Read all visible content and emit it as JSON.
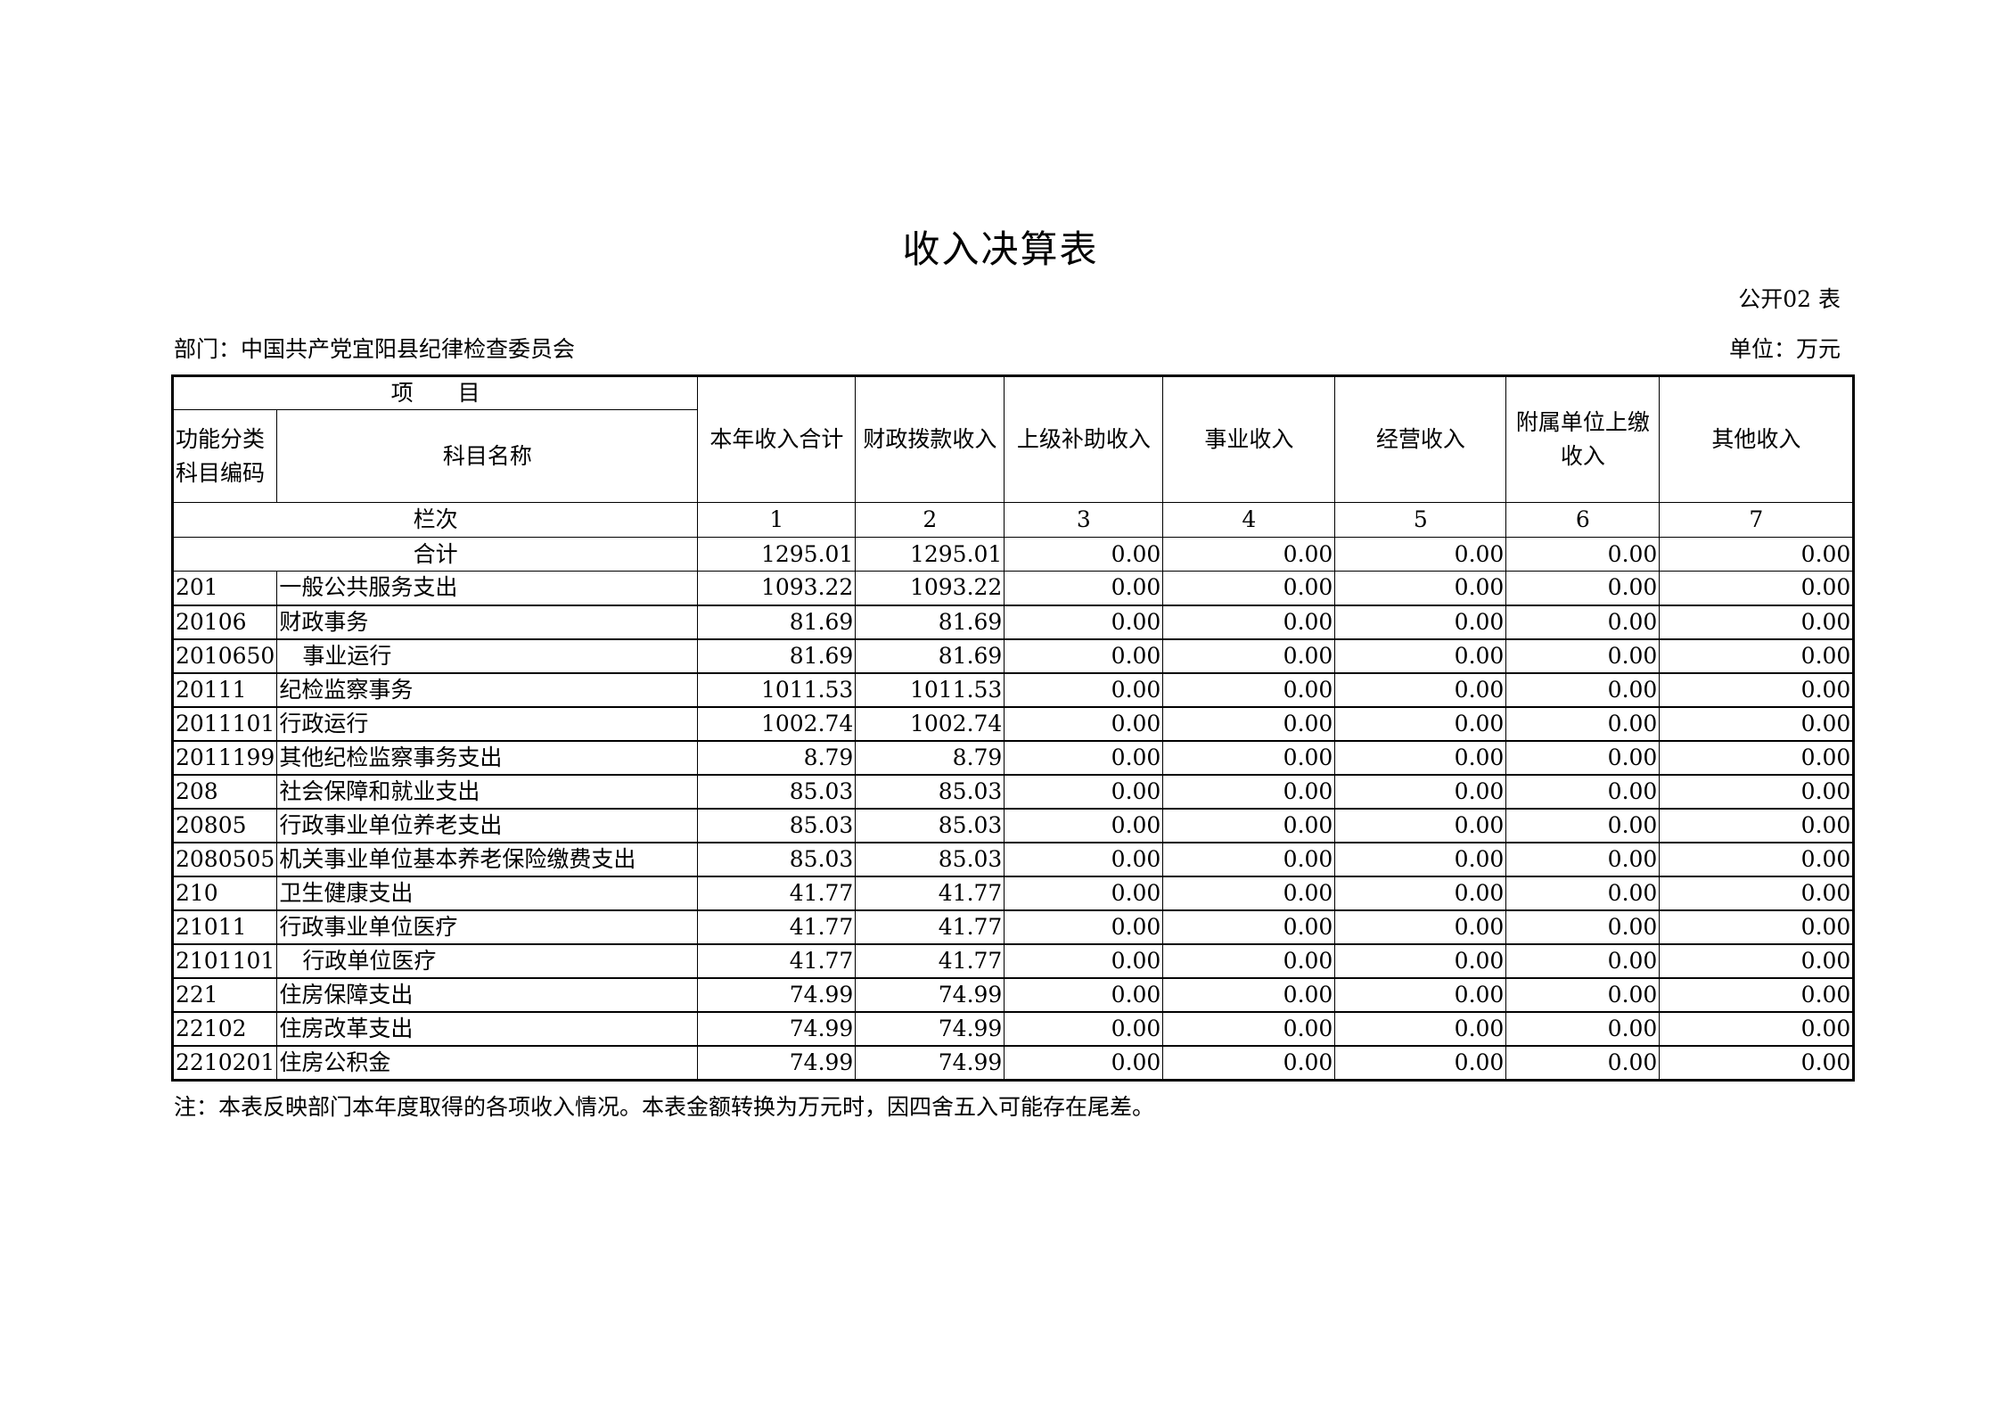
{
  "title": "收入决算表",
  "form_no": "公开02 表",
  "department": "部门：中国共产党宜阳县纪律检查委员会",
  "unit": "单位：万元",
  "headers": {
    "item": "项　　目",
    "code": "功能分类\n科目编码",
    "code_line1": "功能分类",
    "code_line2": "科目编码",
    "name": "科目名称",
    "columns": [
      "本年收入合计",
      "财政拨款收入",
      "上级补助收入",
      "事业收入",
      "经营收入",
      "附属单位上缴收入",
      "其他收入"
    ],
    "col6_line1": "附属单位上缴",
    "col6_line2": "收入",
    "seq_label": "栏次",
    "seq": [
      "1",
      "2",
      "3",
      "4",
      "5",
      "6",
      "7"
    ]
  },
  "total": {
    "label": "合计",
    "values": [
      "1295.01",
      "1295.01",
      "0.00",
      "0.00",
      "0.00",
      "0.00",
      "0.00"
    ]
  },
  "rows": [
    {
      "code": "201",
      "name": "一般公共服务支出",
      "indent": false,
      "values": [
        "1093.22",
        "1093.22",
        "0.00",
        "0.00",
        "0.00",
        "0.00",
        "0.00"
      ]
    },
    {
      "code": "20106",
      "name": "财政事务",
      "indent": false,
      "values": [
        "81.69",
        "81.69",
        "0.00",
        "0.00",
        "0.00",
        "0.00",
        "0.00"
      ]
    },
    {
      "code": "2010650",
      "name": "事业运行",
      "indent": true,
      "values": [
        "81.69",
        "81.69",
        "0.00",
        "0.00",
        "0.00",
        "0.00",
        "0.00"
      ]
    },
    {
      "code": "20111",
      "name": "纪检监察事务",
      "indent": false,
      "values": [
        "1011.53",
        "1011.53",
        "0.00",
        "0.00",
        "0.00",
        "0.00",
        "0.00"
      ]
    },
    {
      "code": "2011101",
      "name": "行政运行",
      "indent": false,
      "values": [
        "1002.74",
        "1002.74",
        "0.00",
        "0.00",
        "0.00",
        "0.00",
        "0.00"
      ]
    },
    {
      "code": "2011199",
      "name": "其他纪检监察事务支出",
      "indent": false,
      "values": [
        "8.79",
        "8.79",
        "0.00",
        "0.00",
        "0.00",
        "0.00",
        "0.00"
      ]
    },
    {
      "code": "208",
      "name": "社会保障和就业支出",
      "indent": false,
      "values": [
        "85.03",
        "85.03",
        "0.00",
        "0.00",
        "0.00",
        "0.00",
        "0.00"
      ]
    },
    {
      "code": "20805",
      "name": "行政事业单位养老支出",
      "indent": false,
      "values": [
        "85.03",
        "85.03",
        "0.00",
        "0.00",
        "0.00",
        "0.00",
        "0.00"
      ]
    },
    {
      "code": "2080505",
      "name": "机关事业单位基本养老保险缴费支出",
      "indent": false,
      "values": [
        "85.03",
        "85.03",
        "0.00",
        "0.00",
        "0.00",
        "0.00",
        "0.00"
      ]
    },
    {
      "code": "210",
      "name": "卫生健康支出",
      "indent": false,
      "values": [
        "41.77",
        "41.77",
        "0.00",
        "0.00",
        "0.00",
        "0.00",
        "0.00"
      ]
    },
    {
      "code": "21011",
      "name": "行政事业单位医疗",
      "indent": false,
      "values": [
        "41.77",
        "41.77",
        "0.00",
        "0.00",
        "0.00",
        "0.00",
        "0.00"
      ]
    },
    {
      "code": "2101101",
      "name": "行政单位医疗",
      "indent": true,
      "values": [
        "41.77",
        "41.77",
        "0.00",
        "0.00",
        "0.00",
        "0.00",
        "0.00"
      ]
    },
    {
      "code": "221",
      "name": "住房保障支出",
      "indent": false,
      "values": [
        "74.99",
        "74.99",
        "0.00",
        "0.00",
        "0.00",
        "0.00",
        "0.00"
      ]
    },
    {
      "code": "22102",
      "name": "住房改革支出",
      "indent": false,
      "values": [
        "74.99",
        "74.99",
        "0.00",
        "0.00",
        "0.00",
        "0.00",
        "0.00"
      ]
    },
    {
      "code": "2210201",
      "name": "住房公积金",
      "indent": false,
      "values": [
        "74.99",
        "74.99",
        "0.00",
        "0.00",
        "0.00",
        "0.00",
        "0.00"
      ]
    }
  ],
  "note": "注：本表反映部门本年度取得的各项收入情况。本表金额转换为万元时，因四舍五入可能存在尾差。"
}
